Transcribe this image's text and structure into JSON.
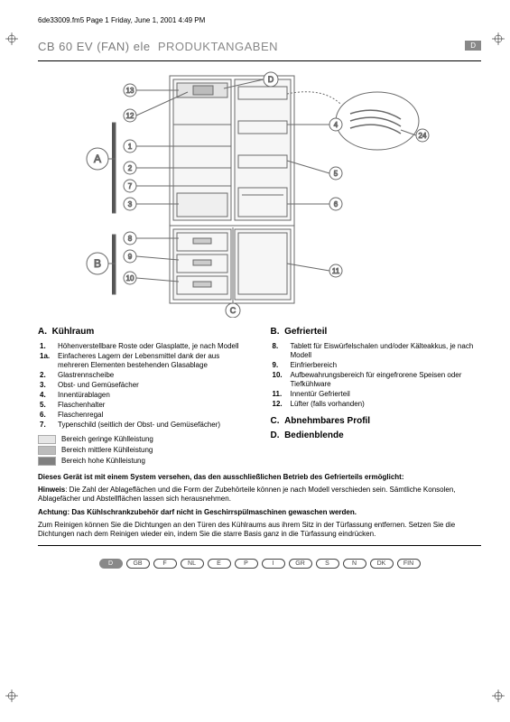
{
  "header": "6de33009.fm5  Page 1  Friday, June 1, 2001  4:49 PM",
  "title_model": "CB 60 EV (FAN) ele",
  "title_section": "PRODUKTANGABEN",
  "lang_badge": "D",
  "sectionA": {
    "letter": "A.",
    "heading": "Kühlraum",
    "items": [
      "Höhenverstellbare Roste oder Glasplatte, je nach Modell",
      "Einfacheres Lagern der Lebensmittel dank der aus mehreren Elementen bestehenden Glasablage",
      "Glastrennscheibe",
      "Obst- und Gemüsefächer",
      "Innentürablagen",
      "Flaschenhalter",
      "Flaschenregal",
      "Typenschild (seitlich der Obst- und Gemüsefächer)"
    ]
  },
  "sectionB": {
    "letter": "B.",
    "heading": "Gefrierteil",
    "items": [
      "Tablett für Eiswürfelschalen und/oder Kälteakkus, je nach Modell",
      "Einfrierbereich",
      "Aufbewahrungsbereich für eingefrorene Speisen oder Tiefkühlware",
      "Innentür Gefrierteil",
      "Lüfter (falls vorhanden)"
    ]
  },
  "sectionC": {
    "letter": "C.",
    "heading": "Abnehmbares Profil"
  },
  "sectionD": {
    "letter": "D.",
    "heading": "Bedienblende"
  },
  "legend": {
    "low": "Bereich geringe Kühlleistung",
    "mid": "Bereich mittlere Kühlleistung",
    "high": "Bereich hohe Kühlleistung",
    "colors": {
      "low": "#e6e6e6",
      "mid": "#bcbcbc",
      "high": "#808080"
    }
  },
  "body": {
    "bold1": "Dieses Gerät ist mit einem System versehen, das den ausschließlichen Betrieb des Gefrierteils ermöglicht:",
    "note_lead": "Hinweis",
    "note": ": Die Zahl der Ablageflächen und die Form der Zubehörteile können je nach Modell verschieden sein. Sämtliche Konsolen, Ablagefächer und Abstellflächen lassen sich herausnehmen.",
    "warn": "Achtung: Das Kühlschrankzubehör darf nicht in Geschirrspülmaschinen gewaschen werden.",
    "clean": "Zum Reinigen können Sie die Dichtungen an den Türen des Kühlraums aus ihrem Sitz in der Türfassung entfernen. Setzen Sie die Dichtungen nach dem Reinigen wieder ein, indem Sie die starre Basis ganz in die Türfassung eindrücken."
  },
  "langs": [
    "D",
    "GB",
    "F",
    "NL",
    "E",
    "P",
    "I",
    "GR",
    "S",
    "N",
    "DK",
    "FIN"
  ],
  "callouts": {
    "left": [
      "13",
      "12",
      "1",
      "2",
      "7",
      "3",
      "8",
      "9",
      "10"
    ],
    "right": [
      "4",
      "24",
      "5",
      "6",
      "11"
    ],
    "big": [
      "A",
      "B",
      "C",
      "D"
    ]
  },
  "diagram_colors": {
    "stroke": "#6a6a6a",
    "light": "#bdbdbd",
    "fill_light": "#e2e2e2",
    "fill_mid": "#bcbcbc"
  }
}
